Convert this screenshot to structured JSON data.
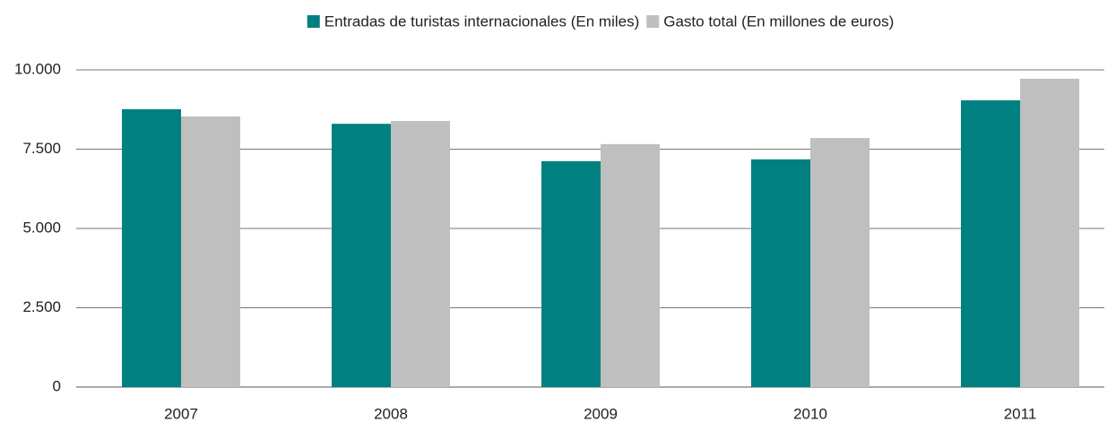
{
  "chart_data": {
    "type": "bar",
    "categories": [
      "2007",
      "2008",
      "2009",
      "2010",
      "2011"
    ],
    "series": [
      {
        "name": "Entradas de turistas internacionales (En miles)",
        "color": "#008080",
        "values": [
          8760,
          8300,
          7120,
          7180,
          9040
        ]
      },
      {
        "name": "Gasto total (En millones de euros)",
        "color": "#bfbfbf",
        "values": [
          8530,
          8390,
          7660,
          7850,
          9720
        ]
      }
    ],
    "ylim": [
      0,
      10000
    ],
    "yticks": [
      0,
      {
        "value": 2500,
        "label": "2.500"
      },
      {
        "value": 5000,
        "label": "5.000"
      },
      {
        "value": 7500,
        "label": "7.500"
      },
      {
        "value": 10000,
        "label": "10.000"
      }
    ],
    "grid": true,
    "legend": "top"
  }
}
